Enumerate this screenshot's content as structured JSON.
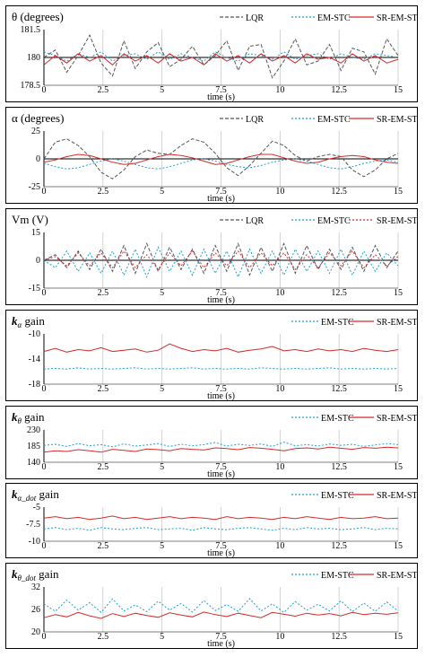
{
  "chart_data": [
    {
      "type": "line",
      "title": "θ (degrees)",
      "xlabel": "time (s)",
      "xlim": [
        0,
        15
      ],
      "ylim": [
        178.5,
        181.5
      ],
      "x_ticks": [
        0,
        2.5,
        5,
        7.5,
        10,
        12.5,
        15
      ],
      "x_tick_labels": [
        "0",
        "2.5",
        "5",
        "7.5",
        "10",
        "12.5",
        "15"
      ],
      "y_ticks": [
        178.5,
        180,
        181.5
      ],
      "y_tick_labels": [
        "178.5",
        "180",
        "181.5"
      ],
      "zero_line": 180,
      "legend_position": "top-right",
      "series": [
        {
          "name": "LQR",
          "color": "#555555",
          "dash": "4,2",
          "values": [
            180.0,
            180.4,
            179.2,
            180.1,
            181.2,
            179.7,
            179.0,
            180.9,
            179.4,
            180.3,
            180.8,
            179.5,
            179.9,
            180.6,
            179.6,
            180.1,
            180.9,
            179.3,
            180.6,
            180.7,
            178.9,
            179.8,
            181.0,
            179.6,
            179.8,
            180.7,
            179.3,
            180.5,
            180.3,
            179.1,
            181.0,
            180.1
          ]
        },
        {
          "name": "EM-STC",
          "color": "#1a9fd6",
          "dash": "2,2",
          "values": [
            180.3,
            180.1,
            179.8,
            180.2,
            180.0,
            180.3,
            179.8,
            180.1,
            180.2,
            179.9,
            180.3,
            179.9,
            180.2,
            180.0,
            179.8,
            180.3,
            180.0,
            179.8,
            180.2,
            180.1,
            179.9,
            180.3,
            179.9,
            180.1,
            180.2,
            179.9,
            180.2,
            180.0,
            179.9,
            180.2,
            180.1,
            180.0
          ]
        },
        {
          "name": "SR-EM-STC",
          "color": "#d42b2b",
          "dash": "",
          "values": [
            179.6,
            180.1,
            179.7,
            180.2,
            179.8,
            180.1,
            179.6,
            180.2,
            179.8,
            180.1,
            179.7,
            180.2,
            179.8,
            180.0,
            179.6,
            180.2,
            179.8,
            180.1,
            179.7,
            180.2,
            179.8,
            180.1,
            179.7,
            180.2,
            179.9,
            180.0,
            179.7,
            180.2,
            179.8,
            180.1,
            179.7,
            179.9
          ]
        }
      ]
    },
    {
      "type": "line",
      "title": "α (degrees)",
      "xlabel": "time (s)",
      "xlim": [
        0,
        15
      ],
      "ylim": [
        -25,
        25
      ],
      "x_ticks": [
        0,
        2.5,
        5,
        7.5,
        10,
        12.5,
        15
      ],
      "x_tick_labels": [
        "0",
        "2.5",
        "5",
        "7.5",
        "10",
        "12.5",
        "15"
      ],
      "y_ticks": [
        -25,
        0,
        25
      ],
      "y_tick_labels": [
        "-25",
        "0",
        "25"
      ],
      "zero_line": 0,
      "legend_position": "top-right",
      "series": [
        {
          "name": "LQR",
          "color": "#555555",
          "dash": "4,2",
          "values": [
            0,
            15,
            18,
            12,
            2,
            -12,
            -18,
            -10,
            2,
            8,
            5,
            4,
            12,
            18,
            15,
            5,
            -8,
            -15,
            -6,
            5,
            16,
            12,
            3,
            -2,
            2,
            4,
            2,
            -10,
            -16,
            -10,
            0,
            5
          ]
        },
        {
          "name": "EM-STC",
          "color": "#1a9fd6",
          "dash": "2,2",
          "values": [
            -4,
            -7,
            -9,
            -8,
            -5,
            -2,
            0,
            -2,
            -5,
            -8,
            -9,
            -7,
            -4,
            -1,
            0,
            -2,
            -5,
            -7,
            -8,
            -6,
            -3,
            -1,
            0,
            -2,
            -5,
            -8,
            -9,
            -7,
            -4,
            -2,
            -1,
            -3
          ]
        },
        {
          "name": "SR-EM-STC",
          "color": "#d42b2b",
          "dash": "",
          "values": [
            -3,
            -1,
            2,
            4,
            3,
            0,
            -3,
            -5,
            -4,
            -1,
            2,
            4,
            3,
            1,
            -2,
            -5,
            -4,
            -1,
            2,
            4,
            4,
            1,
            -2,
            -4,
            -3,
            0,
            2,
            3,
            2,
            -1,
            -3,
            -4
          ]
        }
      ]
    },
    {
      "type": "line",
      "title": "Vm (V)",
      "xlabel": "time (s)",
      "xlim": [
        0,
        15
      ],
      "ylim": [
        -15,
        15
      ],
      "x_ticks": [
        0,
        2.5,
        5,
        7.5,
        10,
        12.5,
        15
      ],
      "x_tick_labels": [
        "0",
        "2.5",
        "5",
        "7.5",
        "10",
        "12.5",
        "15"
      ],
      "y_ticks": [
        -15,
        0,
        15
      ],
      "y_tick_labels": [
        "-15",
        "0",
        "15"
      ],
      "zero_line": 0,
      "legend_position": "top-right",
      "series": [
        {
          "name": "LQR",
          "color": "#555555",
          "dash": "4,2",
          "values": [
            0,
            3,
            -4,
            5,
            -5,
            6,
            -6,
            8,
            -7,
            9,
            -6,
            7,
            -5,
            6,
            -7,
            8,
            -6,
            9,
            -8,
            7,
            -6,
            9,
            -7,
            8,
            -5,
            6,
            -5,
            7,
            -6,
            8,
            -4,
            5
          ]
        },
        {
          "name": "EM-STC",
          "color": "#1a9fd6",
          "dash": "2,2",
          "values": [
            0,
            -4,
            5,
            -6,
            4,
            -7,
            5,
            -8,
            6,
            -9,
            7,
            -6,
            5,
            -8,
            6,
            -7,
            5,
            -9,
            6,
            -7,
            5,
            -8,
            6,
            -6,
            5,
            -7,
            6,
            -8,
            5,
            -6,
            4,
            -3
          ]
        },
        {
          "name": "SR-EM-STC",
          "color": "#d42b2b",
          "dash": "2,2",
          "values": [
            0,
            2,
            -3,
            4,
            -3,
            4,
            -4,
            5,
            -4,
            3,
            -5,
            4,
            -3,
            5,
            -4,
            4,
            -3,
            5,
            -4,
            4,
            -3,
            4,
            -5,
            3,
            -4,
            4,
            -3,
            5,
            -4,
            3,
            -3,
            2
          ]
        }
      ]
    },
    {
      "type": "line",
      "title_main": "k",
      "title_sub": "α",
      "title_suffix": " gain",
      "xlabel": "time (s)",
      "xlim": [
        0,
        15
      ],
      "ylim": [
        -18,
        -10
      ],
      "x_ticks": [
        0,
        2.5,
        5,
        7.5,
        10,
        12.5,
        15
      ],
      "x_tick_labels": [
        "0",
        "2.5",
        "5",
        "7.5",
        "10",
        "12.5",
        "15"
      ],
      "y_ticks": [
        -10,
        -14,
        -18
      ],
      "y_tick_labels": [
        "-10",
        "-14",
        "-18"
      ],
      "legend_position": "top-right",
      "series": [
        {
          "name": "EM-STC",
          "color": "#1a9fd6",
          "dash": "2,2",
          "values": [
            -15.6,
            -15.5,
            -15.6,
            -15.4,
            -15.6,
            -15.5,
            -15.6,
            -15.5,
            -15.4,
            -15.6,
            -15.5,
            -15.6,
            -15.5,
            -15.4,
            -15.6,
            -15.5,
            -15.6,
            -15.5,
            -15.6,
            -15.4,
            -15.5,
            -15.6,
            -15.5,
            -15.6,
            -15.5,
            -15.4,
            -15.6,
            -15.5,
            -15.6,
            -15.5,
            -15.6,
            -15.5
          ]
        },
        {
          "name": "SR-EM-STC",
          "color": "#d42b2b",
          "dash": "",
          "values": [
            -12.8,
            -12.3,
            -12.9,
            -12.5,
            -12.7,
            -12.2,
            -12.8,
            -12.6,
            -12.4,
            -12.9,
            -12.6,
            -11.6,
            -12.3,
            -12.8,
            -12.5,
            -12.7,
            -12.3,
            -12.9,
            -12.6,
            -12.4,
            -12.0,
            -12.7,
            -12.5,
            -12.8,
            -12.4,
            -12.7,
            -12.5,
            -12.8,
            -12.3,
            -12.6,
            -12.8,
            -12.5
          ]
        }
      ]
    },
    {
      "type": "line",
      "title_main": "k",
      "title_sub": "θ",
      "title_suffix": " gain",
      "xlabel": "time (s)",
      "xlim": [
        0,
        15
      ],
      "ylim": [
        140,
        230
      ],
      "x_ticks": [
        0,
        2.5,
        5,
        7.5,
        10,
        12.5,
        15
      ],
      "x_tick_labels": [
        "0",
        "2.5",
        "5",
        "7.5",
        "10",
        "12.5",
        "15"
      ],
      "y_ticks": [
        230,
        185,
        140
      ],
      "y_tick_labels": [
        "230",
        "185",
        "140"
      ],
      "legend_position": "top-right",
      "series": [
        {
          "name": "EM-STC",
          "color": "#1a9fd6",
          "dash": "2,2",
          "values": [
            187,
            190,
            184,
            192,
            186,
            189,
            183,
            191,
            185,
            188,
            192,
            184,
            190,
            186,
            189,
            195,
            185,
            190,
            187,
            191,
            184,
            196,
            186,
            189,
            185,
            191,
            187,
            190,
            184,
            188,
            192,
            189
          ]
        },
        {
          "name": "SR-EM-STC",
          "color": "#d42b2b",
          "dash": "",
          "values": [
            168,
            172,
            170,
            175,
            172,
            168,
            176,
            173,
            170,
            177,
            175,
            172,
            178,
            176,
            174,
            180,
            178,
            175,
            181,
            179,
            176,
            172,
            178,
            180,
            177,
            182,
            179,
            176,
            181,
            179,
            182,
            180
          ]
        }
      ]
    },
    {
      "type": "line",
      "title_main": "k",
      "title_sub": "α_dot",
      "title_suffix": " gain",
      "xlabel": "time (s)",
      "xlim": [
        0,
        15
      ],
      "ylim": [
        -10,
        -5
      ],
      "x_ticks": [
        0,
        2.5,
        5,
        7.5,
        10,
        12.5,
        15
      ],
      "x_tick_labels": [
        "0",
        "2.5",
        "5",
        "7.5",
        "10",
        "12.5",
        "15"
      ],
      "y_ticks": [
        -5,
        -7.5,
        -10
      ],
      "y_tick_labels": [
        "-5",
        "-7.5",
        "-10"
      ],
      "legend_position": "top-right",
      "series": [
        {
          "name": "EM-STC",
          "color": "#1a9fd6",
          "dash": "2,2",
          "values": [
            -8.2,
            -8.0,
            -8.3,
            -8.1,
            -8.4,
            -8.0,
            -8.2,
            -8.3,
            -8.1,
            -8.0,
            -8.3,
            -8.2,
            -8.1,
            -8.4,
            -8.0,
            -8.2,
            -8.3,
            -8.1,
            -8.0,
            -8.2,
            -8.4,
            -8.1,
            -8.3,
            -8.0,
            -8.2,
            -8.1,
            -8.3,
            -8.2,
            -8.0,
            -8.3,
            -8.1,
            -8.2
          ]
        },
        {
          "name": "SR-EM-STC",
          "color": "#d42b2b",
          "dash": "",
          "values": [
            -6.6,
            -6.4,
            -6.7,
            -6.5,
            -6.8,
            -6.6,
            -6.3,
            -6.7,
            -6.5,
            -6.8,
            -6.6,
            -6.4,
            -6.7,
            -6.5,
            -6.6,
            -6.8,
            -6.4,
            -6.7,
            -6.5,
            -6.6,
            -6.8,
            -6.5,
            -6.7,
            -6.4,
            -6.6,
            -6.8,
            -6.5,
            -6.7,
            -6.6,
            -6.4,
            -6.7,
            -6.6
          ]
        }
      ]
    },
    {
      "type": "line",
      "title_main": "k",
      "title_sub": "θ_dot",
      "title_suffix": " gain",
      "xlabel": "time (s)",
      "xlim": [
        0,
        15
      ],
      "ylim": [
        20,
        32
      ],
      "x_ticks": [
        0,
        2.5,
        5,
        7.5,
        10,
        12.5,
        15
      ],
      "x_tick_labels": [
        "0",
        "2.5",
        "5",
        "7.5",
        "10",
        "12.5",
        "15"
      ],
      "y_ticks": [
        32,
        26,
        20
      ],
      "y_tick_labels": [
        "32",
        "26",
        "20"
      ],
      "legend_position": "top-right",
      "series": [
        {
          "name": "EM-STC",
          "color": "#1a9fd6",
          "dash": "2,2",
          "values": [
            27.5,
            25.5,
            28.5,
            25.8,
            27.8,
            25.2,
            28.8,
            25.6,
            27.2,
            25.4,
            28.2,
            25.8,
            27.6,
            25.3,
            28.4,
            25.7,
            27.3,
            25.5,
            28.9,
            25.6,
            27.5,
            25.2,
            28.1,
            25.8,
            27.4,
            25.6,
            28.3,
            25.4,
            27.7,
            25.5,
            28.0,
            25.6
          ]
        },
        {
          "name": "SR-EM-STC",
          "color": "#d42b2b",
          "dash": "",
          "values": [
            23.8,
            24.6,
            24.0,
            25.2,
            24.3,
            23.6,
            24.9,
            24.1,
            25.0,
            24.4,
            23.9,
            25.1,
            24.5,
            24.0,
            25.3,
            24.6,
            24.1,
            25.0,
            24.4,
            23.8,
            25.2,
            24.7,
            24.2,
            25.0,
            24.5,
            24.9,
            24.3,
            25.2,
            24.6,
            25.0,
            24.7,
            25.1
          ]
        }
      ]
    }
  ]
}
